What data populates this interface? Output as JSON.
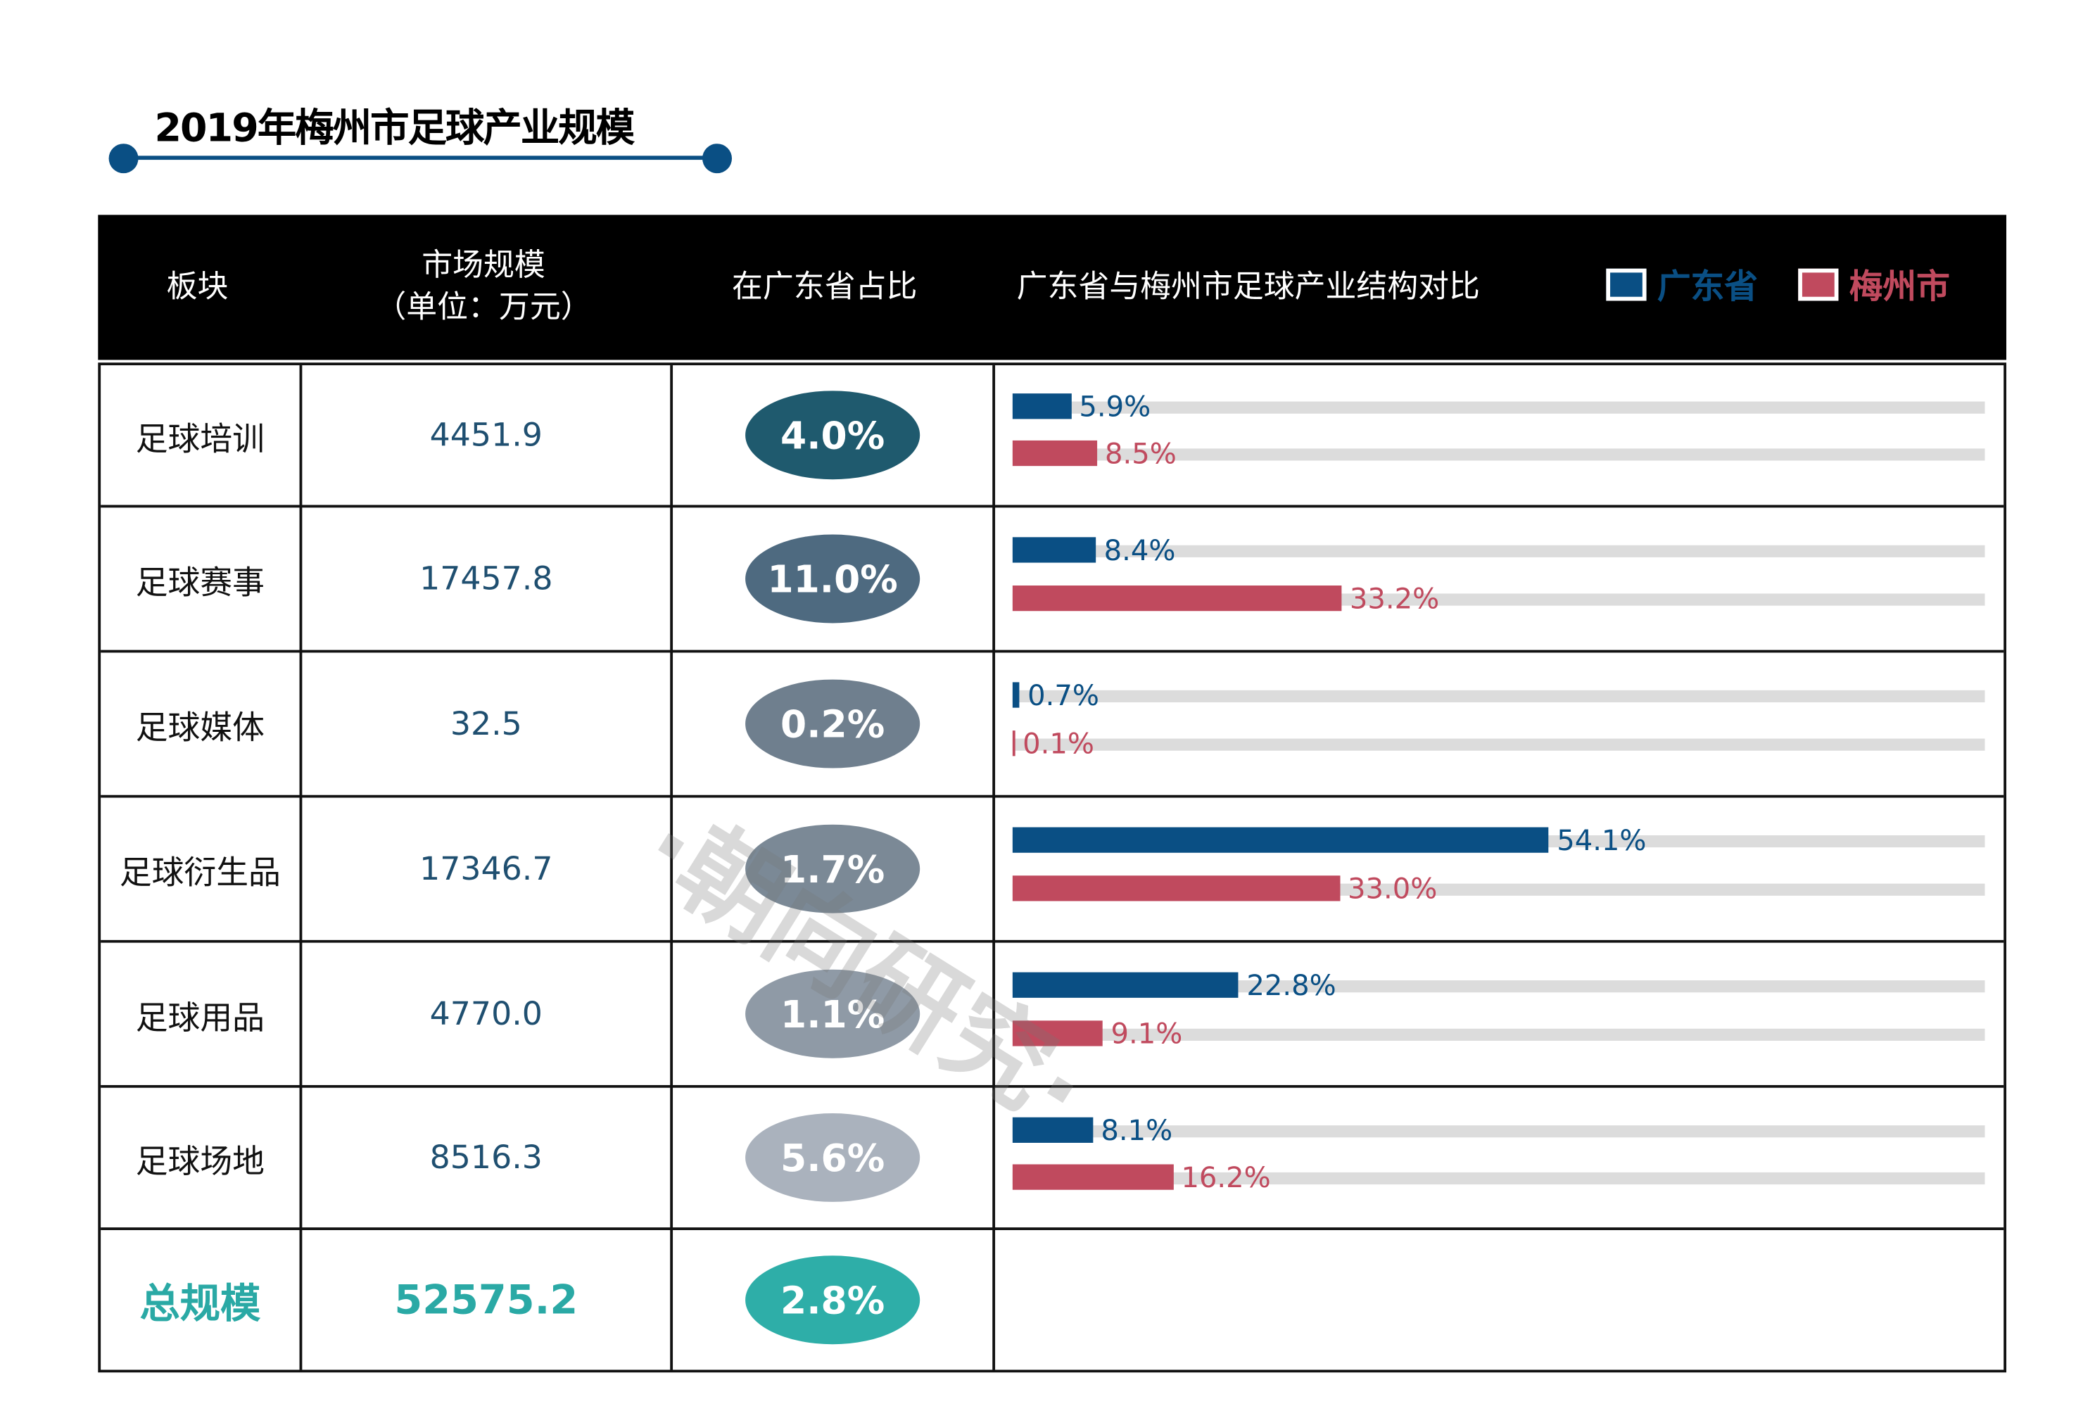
{
  "title": "2019年梅州市足球产业规模",
  "header": {
    "col_sector": "板块",
    "col_market_line1": "市场规模",
    "col_market_line2": "（单位：万元）",
    "col_share": "在广东省占比",
    "col_compare": "广东省与梅州市足球产业结构对比",
    "legend": [
      {
        "label": "广东省",
        "color": "#0a4f84"
      },
      {
        "label": "梅州市",
        "color": "#c04a5e"
      }
    ]
  },
  "rows": [
    {
      "name": "足球培训",
      "value": "4451.9",
      "share": "4.0%",
      "share_color": "#1f5a6e",
      "guangdong": 5.9,
      "guangdong_label": "5.9%",
      "meizhou": 8.5,
      "meizhou_label": "8.5%"
    },
    {
      "name": "足球赛事",
      "value": "17457.8",
      "share": "11.0%",
      "share_color": "#4e6a80",
      "guangdong": 8.4,
      "guangdong_label": "8.4%",
      "meizhou": 33.2,
      "meizhou_label": "33.2%"
    },
    {
      "name": "足球媒体",
      "value": "32.5",
      "share": "0.2%",
      "share_color": "#6f7f8e",
      "guangdong": 0.7,
      "guangdong_label": "0.7%",
      "meizhou": 0.1,
      "meizhou_label": "0.1%"
    },
    {
      "name": "足球衍生品",
      "value": "17346.7",
      "share": "1.7%",
      "share_color": "#7b8996",
      "guangdong": 54.1,
      "guangdong_label": "54.1%",
      "meizhou": 33.0,
      "meizhou_label": "33.0%"
    },
    {
      "name": "足球用品",
      "value": "4770.0",
      "share": "1.1%",
      "share_color": "#8f9aa6",
      "guangdong": 22.8,
      "guangdong_label": "22.8%",
      "meizhou": 9.1,
      "meizhou_label": "9.1%"
    },
    {
      "name": "足球场地",
      "value": "8516.3",
      "share": "5.6%",
      "share_color": "#aab2bd",
      "guangdong": 8.1,
      "guangdong_label": "8.1%",
      "meizhou": 16.2,
      "meizhou_label": "16.2%"
    }
  ],
  "total": {
    "name": "总规模",
    "value": "52575.2",
    "share": "2.8%",
    "share_color": "#2eaea8"
  },
  "watermark": "·朝向研究·"
}
